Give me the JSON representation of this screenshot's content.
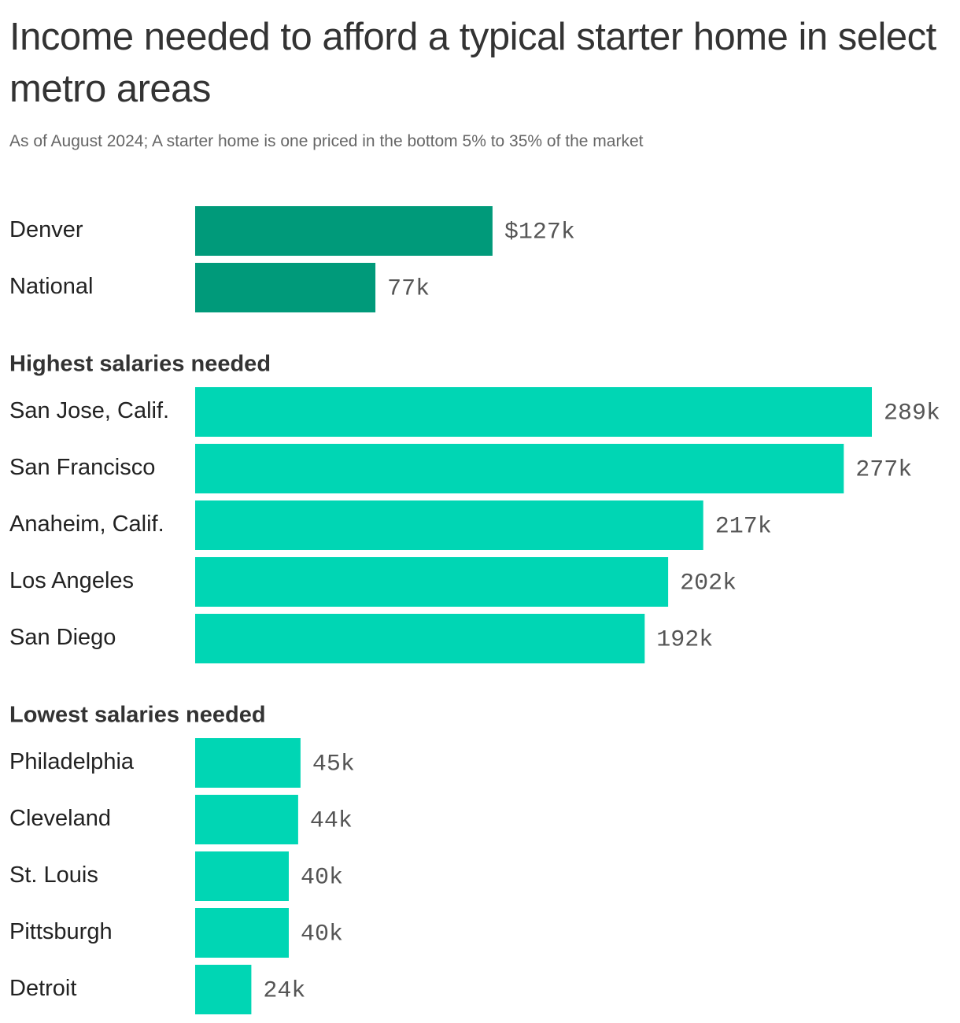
{
  "title": "Income needed to afford a typical starter home in select metro areas",
  "subtitle": "As of August 2024; A starter home is one priced in the bottom 5% to 35% of the market",
  "colors": {
    "reference": "#009a7a",
    "metro": "#00d6b4"
  },
  "chart_data": {
    "type": "bar",
    "orientation": "horizontal",
    "unit": "thousands of dollars",
    "xlim": [
      0,
      289
    ],
    "groups": [
      {
        "heading": "",
        "color_key": "reference",
        "rows": [
          {
            "category": "Denver",
            "value": 127,
            "label": "$127k"
          },
          {
            "category": "National",
            "value": 77,
            "label": "77k"
          }
        ]
      },
      {
        "heading": "Highest salaries needed",
        "color_key": "metro",
        "rows": [
          {
            "category": "San Jose, Calif.",
            "value": 289,
            "label": "289k"
          },
          {
            "category": "San Francisco",
            "value": 277,
            "label": "277k"
          },
          {
            "category": "Anaheim, Calif.",
            "value": 217,
            "label": "217k"
          },
          {
            "category": "Los Angeles",
            "value": 202,
            "label": "202k"
          },
          {
            "category": "San Diego",
            "value": 192,
            "label": "192k"
          }
        ]
      },
      {
        "heading": "Lowest salaries needed",
        "color_key": "metro",
        "rows": [
          {
            "category": "Philadelphia",
            "value": 45,
            "label": "45k"
          },
          {
            "category": "Cleveland",
            "value": 44,
            "label": "44k"
          },
          {
            "category": "St. Louis",
            "value": 40,
            "label": "40k"
          },
          {
            "category": "Pittsburgh",
            "value": 40,
            "label": "40k"
          },
          {
            "category": "Detroit",
            "value": 24,
            "label": "24k"
          }
        ]
      }
    ]
  }
}
